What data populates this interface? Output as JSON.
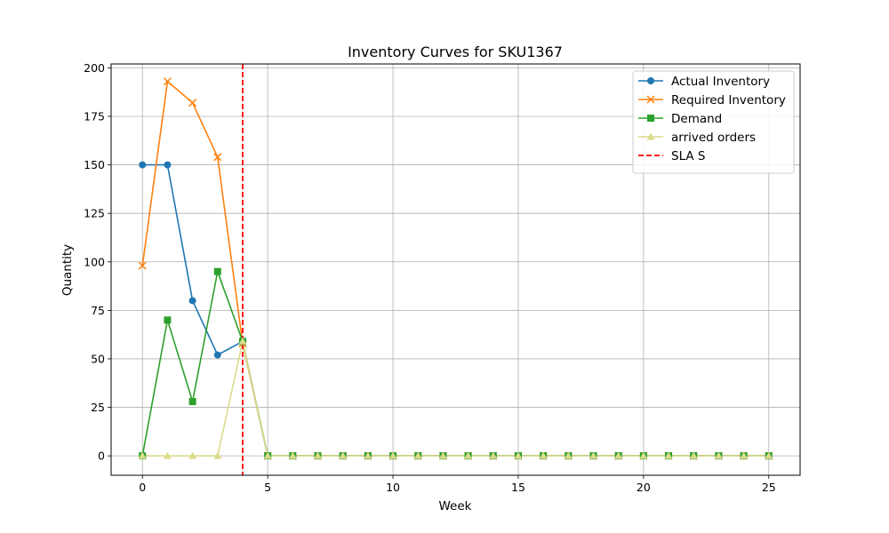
{
  "chart_data": {
    "type": "line",
    "title": "Inventory Curves for SKU1367",
    "xlabel": "Week",
    "ylabel": "Quantity",
    "xlim": [
      -1.25,
      26.25
    ],
    "ylim": [
      -10,
      202
    ],
    "x_ticks": [
      "0",
      "5",
      "10",
      "15",
      "20",
      "25"
    ],
    "y_ticks": [
      "0",
      "25",
      "50",
      "75",
      "100",
      "125",
      "150",
      "175",
      "200"
    ],
    "grid": true,
    "legend_position": "top-right",
    "x": [
      0,
      1,
      2,
      3,
      4,
      5,
      6,
      7,
      8,
      9,
      10,
      11,
      12,
      13,
      14,
      15,
      16,
      17,
      18,
      19,
      20,
      21,
      22,
      23,
      24,
      25
    ],
    "series": [
      {
        "name": "Actual Inventory",
        "color": "#1f77b4",
        "marker": "circle",
        "line": "solid",
        "values": [
          150,
          150,
          80,
          52,
          59,
          0,
          0,
          0,
          0,
          0,
          0,
          0,
          0,
          0,
          0,
          0,
          0,
          0,
          0,
          0,
          0,
          0,
          0,
          0,
          0,
          0
        ]
      },
      {
        "name": "Required Inventory",
        "color": "#ff7f0e",
        "marker": "x",
        "line": "solid",
        "values": [
          98,
          193,
          182,
          154,
          58,
          0,
          0,
          0,
          0,
          0,
          0,
          0,
          0,
          0,
          0,
          0,
          0,
          0,
          0,
          0,
          0,
          0,
          0,
          0,
          0,
          0
        ]
      },
      {
        "name": "Demand",
        "color": "#2ca02c",
        "marker": "square",
        "line": "solid",
        "values": [
          0,
          70,
          28,
          95,
          59,
          0,
          0,
          0,
          0,
          0,
          0,
          0,
          0,
          0,
          0,
          0,
          0,
          0,
          0,
          0,
          0,
          0,
          0,
          0,
          0,
          0
        ]
      },
      {
        "name": "arrived orders",
        "color": "#dbdb8d",
        "marker": "triangle",
        "line": "solid",
        "values": [
          0,
          0,
          0,
          0,
          59,
          0,
          0,
          0,
          0,
          0,
          0,
          0,
          0,
          0,
          0,
          0,
          0,
          0,
          0,
          0,
          0,
          0,
          0,
          0,
          0,
          0
        ]
      }
    ],
    "vlines": [
      {
        "name": "SLA S",
        "x": 4,
        "color": "#ff0000",
        "line": "dashed"
      }
    ]
  }
}
